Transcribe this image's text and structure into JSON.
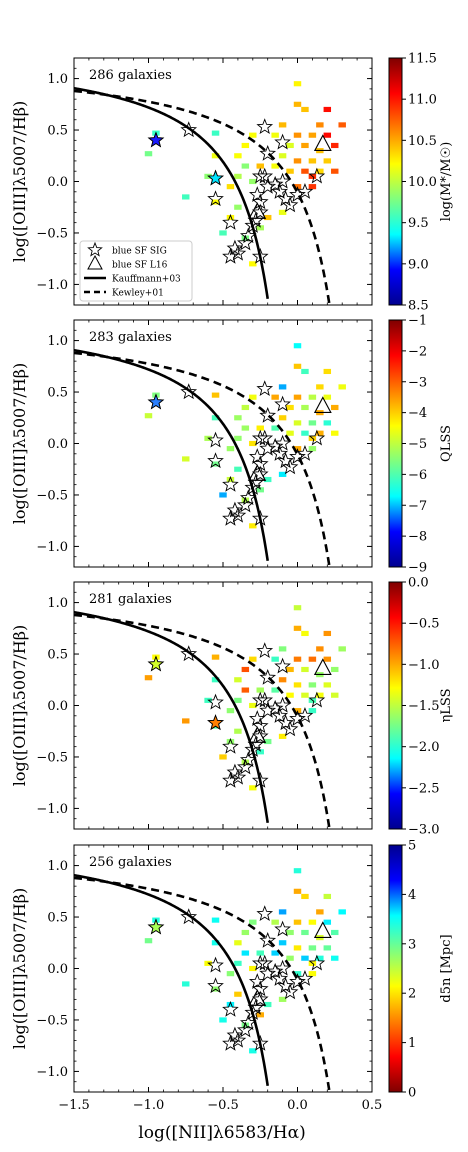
{
  "chart_data": {
    "type": "heatmap",
    "xlim": [
      -1.5,
      0.5
    ],
    "ylim": [
      -1.2,
      1.2
    ],
    "xlabel": "log([NII]λ6583/Hα)",
    "ylabel": "log([OIII]λ5007/Hβ)",
    "xticks": [
      "−1.5",
      "−1.0",
      "−0.5",
      "0.0",
      "0.5"
    ],
    "yticks": [
      "−1.0",
      "−0.5",
      "0.0",
      "0.5",
      "1.0"
    ],
    "legend": {
      "placement": "lower-left",
      "entries": [
        "blue SF SIG",
        "blue SF L16",
        "Kauffmann+03",
        "Kewley+01"
      ]
    },
    "panels": [
      {
        "count_label": "286 galaxies",
        "colorbar": {
          "label": "log(M*/M☉)",
          "min": 8.5,
          "max": 11.5,
          "ticks": [
            "8.5",
            "9.0",
            "9.5",
            "10.0",
            "10.5",
            "11.0",
            "11.5"
          ],
          "cmap": [
            "#00008f",
            "#0000ff",
            "#00ffff",
            "#7fff7f",
            "#ffff00",
            "#ff7f00",
            "#ff0000",
            "#7f0000"
          ]
        },
        "cmap_reversed": false,
        "base_level": 0.72
      },
      {
        "count_label": "283 galaxies",
        "colorbar": {
          "label": "QLSS",
          "min": -9,
          "max": -1,
          "ticks": [
            "−9",
            "−8",
            "−7",
            "−6",
            "−5",
            "−4",
            "−3",
            "−2",
            "−1"
          ],
          "cmap": [
            "#00008f",
            "#0000ff",
            "#00ffff",
            "#7fff7f",
            "#ffff00",
            "#ff7f00",
            "#ff0000",
            "#7f0000"
          ]
        },
        "cmap_reversed": false,
        "base_level": 0.45
      },
      {
        "count_label": "281 galaxies",
        "colorbar": {
          "label": "ηLSS",
          "min": -3.0,
          "max": 0.0,
          "ticks": [
            "−3.0",
            "−2.5",
            "−2.0",
            "−1.5",
            "−1.0",
            "−0.5",
            "0.0"
          ],
          "cmap": [
            "#00008f",
            "#0000ff",
            "#00ffff",
            "#7fff7f",
            "#ffff00",
            "#ff7f00",
            "#ff0000",
            "#7f0000"
          ]
        },
        "cmap_reversed": false,
        "base_level": 0.55
      },
      {
        "count_label": "256 galaxies",
        "colorbar": {
          "label": "d5n [Mpc]",
          "min": 0,
          "max": 5,
          "ticks": [
            "0",
            "1",
            "2",
            "3",
            "4",
            "5"
          ],
          "cmap": [
            "#00008f",
            "#0000ff",
            "#00ffff",
            "#7fff7f",
            "#ffff00",
            "#ff7f00",
            "#ff0000",
            "#7f0000"
          ]
        },
        "cmap_reversed": true,
        "base_level": 0.55
      }
    ],
    "curves": {
      "kauffmann03": {
        "formula": "0.61/(x-0.05)+1.3",
        "style": "solid",
        "x_range": [
          -1.5,
          -0.2
        ]
      },
      "kewley01": {
        "formula": "0.61/(x-0.47)+1.19",
        "style": "dashed",
        "x_range": [
          -1.5,
          0.22
        ]
      }
    },
    "stars_sig": [
      [
        -0.95,
        0.4
      ],
      [
        -0.73,
        0.5
      ],
      [
        -0.55,
        0.03
      ],
      [
        -0.55,
        -0.17
      ],
      [
        -0.45,
        -0.4
      ],
      [
        -0.4,
        -0.7
      ],
      [
        -0.45,
        -0.73
      ],
      [
        -0.42,
        -0.65
      ],
      [
        -0.35,
        -0.6
      ],
      [
        -0.33,
        -0.53
      ],
      [
        -0.3,
        -0.43
      ],
      [
        -0.28,
        -0.38
      ],
      [
        -0.25,
        -0.73
      ],
      [
        -0.25,
        -0.3
      ],
      [
        -0.27,
        -0.13
      ],
      [
        -0.2,
        -0.05
      ],
      [
        -0.22,
        0.05
      ],
      [
        -0.25,
        0.05
      ],
      [
        -0.2,
        0.27
      ],
      [
        -0.22,
        0.53
      ],
      [
        -0.15,
        -0.03
      ],
      [
        -0.12,
        -0.1
      ],
      [
        -0.1,
        0.0
      ],
      [
        -0.05,
        -0.23
      ],
      [
        -0.08,
        -0.17
      ],
      [
        -0.1,
        0.38
      ],
      [
        0.0,
        -0.13
      ],
      [
        0.05,
        -0.1
      ],
      [
        0.13,
        0.05
      ],
      [
        -0.25,
        -0.2
      ]
    ],
    "triangles_l16": [
      [
        0.17,
        0.36
      ],
      [
        -0.27,
        -0.3
      ]
    ],
    "colored_stars": [
      {
        "panel": 0,
        "x": -0.95,
        "y": 0.4,
        "color": "#1a1aff"
      },
      {
        "panel": 2,
        "x": -0.95,
        "y": 0.4,
        "color": "#d4ff2a"
      },
      {
        "panel": 3,
        "x": -0.95,
        "y": 0.4,
        "color": "#a8ff55"
      },
      {
        "panel": 0,
        "x": -0.55,
        "y": 0.03,
        "color": "#00e5ff"
      },
      {
        "panel": 1,
        "x": -0.95,
        "y": 0.4,
        "color": "#2a7fff"
      },
      {
        "panel": 2,
        "x": -0.55,
        "y": -0.17,
        "color": "#ff7f00"
      }
    ],
    "squares": [
      [
        -1.0,
        0.27
      ],
      [
        -0.95,
        0.47
      ],
      [
        -0.75,
        -0.15
      ],
      [
        -0.55,
        0.47
      ],
      [
        -0.55,
        0.25
      ],
      [
        -0.55,
        -0.2
      ],
      [
        -0.5,
        -0.5
      ],
      [
        -0.45,
        -0.35
      ],
      [
        -0.4,
        -0.25
      ],
      [
        -0.45,
        -0.05
      ],
      [
        -0.4,
        0.05
      ],
      [
        -0.4,
        0.25
      ],
      [
        -0.35,
        0.15
      ],
      [
        -0.35,
        0.35
      ],
      [
        -0.3,
        0.0
      ],
      [
        -0.3,
        0.45
      ],
      [
        -0.25,
        0.15
      ],
      [
        -0.25,
        -0.45
      ],
      [
        -0.2,
        -0.35
      ],
      [
        -0.15,
        0.15
      ],
      [
        -0.15,
        0.45
      ],
      [
        -0.1,
        0.25
      ],
      [
        -0.1,
        -0.3
      ],
      [
        -0.05,
        0.35
      ],
      [
        -0.05,
        0.1
      ],
      [
        0.0,
        0.45
      ],
      [
        0.0,
        0.2
      ],
      [
        0.0,
        -0.05
      ],
      [
        0.0,
        0.95
      ],
      [
        0.0,
        0.75
      ],
      [
        0.05,
        0.35
      ],
      [
        0.05,
        0.1
      ],
      [
        0.1,
        0.45
      ],
      [
        0.1,
        0.2
      ],
      [
        0.1,
        -0.05
      ],
      [
        0.15,
        0.55
      ],
      [
        0.15,
        0.3
      ],
      [
        0.15,
        0.1
      ],
      [
        0.2,
        0.45
      ],
      [
        0.2,
        0.2
      ],
      [
        0.2,
        0.7
      ],
      [
        0.25,
        0.35
      ],
      [
        0.25,
        0.1
      ],
      [
        0.3,
        0.55
      ],
      [
        -0.6,
        0.05
      ],
      [
        -0.35,
        -0.55
      ],
      [
        -0.3,
        -0.8
      ],
      [
        0.05,
        0.7
      ],
      [
        0.1,
        0.05
      ],
      [
        -0.1,
        0.55
      ]
    ]
  }
}
